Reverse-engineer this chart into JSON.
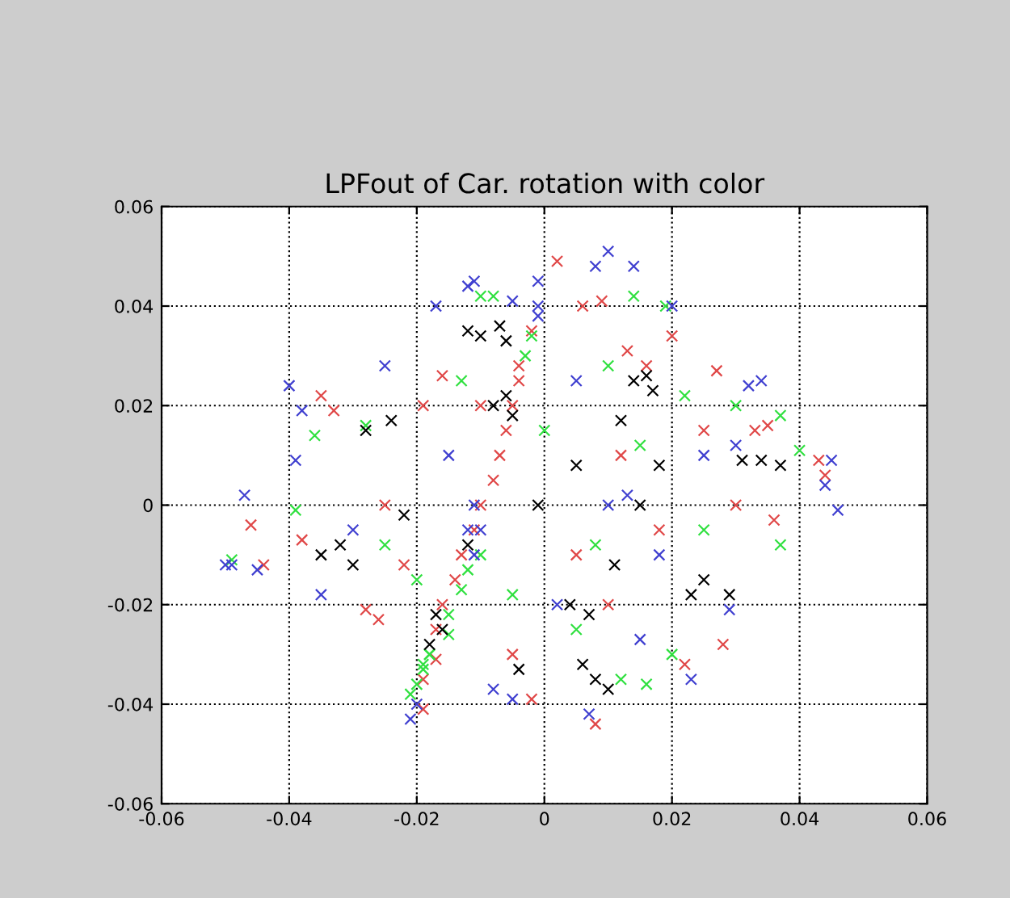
{
  "chart_data": {
    "type": "scatter",
    "title": "LPFout of Car. rotation with color",
    "marker": "cross",
    "grid": true,
    "legend": false,
    "xlim": [
      -0.06,
      0.06
    ],
    "ylim": [
      -0.06,
      0.06
    ],
    "xticks": [
      -0.06,
      -0.04,
      -0.02,
      0,
      0.02,
      0.04,
      0.06
    ],
    "yticks": [
      -0.06,
      -0.04,
      -0.02,
      0,
      0.02,
      0.04,
      0.06
    ],
    "series": [
      {
        "color": "#e04848",
        "x": [
          -0.019,
          -0.019,
          -0.017,
          -0.017,
          -0.016,
          -0.014,
          -0.013,
          -0.011,
          -0.01,
          -0.008,
          -0.007,
          -0.006,
          -0.005,
          -0.004,
          -0.004,
          -0.002,
          0.002,
          0.009,
          0.006,
          -0.035,
          -0.033,
          -0.038,
          -0.044,
          -0.046,
          -0.028,
          -0.026,
          0.043,
          0.044,
          0.035,
          0.028,
          0.022,
          0.008,
          -0.002,
          0.016,
          0.02,
          -0.016,
          -0.019,
          0.03,
          0.012,
          0.005,
          -0.025,
          0.025,
          0.01,
          -0.01,
          0.036,
          -0.005,
          0.018,
          0.013,
          -0.022,
          0.027,
          0.033
        ],
        "values": [
          -0.041,
          -0.035,
          -0.031,
          -0.025,
          -0.02,
          -0.015,
          -0.01,
          -0.005,
          0,
          0.005,
          0.01,
          0.015,
          0.02,
          0.025,
          0.028,
          0.035,
          0.049,
          0.041,
          0.04,
          0.022,
          0.019,
          -0.007,
          -0.012,
          -0.004,
          -0.021,
          -0.023,
          0.009,
          0.006,
          0.016,
          -0.028,
          -0.032,
          -0.044,
          -0.039,
          0.028,
          0.034,
          0.026,
          0.02,
          0,
          0.01,
          -0.01,
          0,
          0.015,
          -0.02,
          0.02,
          -0.003,
          -0.03,
          -0.005,
          0.031,
          -0.012,
          0.027,
          0.015
        ]
      },
      {
        "color": "#30e040",
        "x": [
          -0.021,
          -0.02,
          -0.019,
          -0.018,
          -0.015,
          -0.015,
          -0.013,
          -0.012,
          -0.01,
          -0.003,
          -0.002,
          -0.01,
          -0.008,
          0.014,
          0.019,
          -0.049,
          -0.039,
          -0.036,
          0.037,
          0.04,
          0.037,
          0.016,
          0.02,
          0.01,
          0.015,
          -0.028,
          -0.02,
          0.005,
          0.025,
          0,
          -0.013,
          0.03,
          0.008,
          -0.025,
          0.012,
          -0.005,
          0.022,
          -0.018,
          -0.019
        ],
        "values": [
          -0.038,
          -0.036,
          -0.033,
          -0.03,
          -0.026,
          -0.022,
          -0.017,
          -0.013,
          -0.01,
          0.03,
          0.034,
          0.042,
          0.042,
          0.042,
          0.04,
          -0.011,
          -0.001,
          0.014,
          0.018,
          0.011,
          -0.008,
          -0.036,
          -0.03,
          0.028,
          0.012,
          0.016,
          -0.015,
          -0.025,
          -0.005,
          0.015,
          0.025,
          0.02,
          -0.008,
          -0.008,
          -0.035,
          -0.018,
          0.022,
          -0.03,
          -0.032
        ]
      },
      {
        "color": "#4040d0",
        "x": [
          0.01,
          0.014,
          0.008,
          -0.012,
          -0.011,
          -0.001,
          -0.005,
          -0.05,
          -0.047,
          -0.049,
          -0.045,
          -0.04,
          -0.038,
          -0.039,
          -0.035,
          0.045,
          0.044,
          0.046,
          0.032,
          0.034,
          0.023,
          0.007,
          -0.005,
          -0.008,
          -0.021,
          -0.02,
          -0.011,
          -0.01,
          -0.012,
          -0.011,
          -0.001,
          -0.001,
          0.02,
          0.015,
          0.029,
          -0.025,
          -0.017,
          0.01,
          0.025,
          -0.03,
          0.005,
          0.018,
          -0.015,
          0.03,
          0.002,
          0.013
        ],
        "values": [
          0.051,
          0.048,
          0.048,
          0.044,
          0.045,
          0.045,
          0.041,
          -0.012,
          0.002,
          -0.012,
          -0.013,
          0.024,
          0.019,
          0.009,
          -0.018,
          0.009,
          0.004,
          -0.001,
          0.024,
          0.025,
          -0.035,
          -0.042,
          -0.039,
          -0.037,
          -0.043,
          -0.04,
          -0.01,
          -0.005,
          -0.005,
          0,
          0.04,
          0.038,
          0.04,
          -0.027,
          -0.021,
          0.028,
          0.04,
          0,
          0.01,
          -0.005,
          0.025,
          -0.01,
          0.01,
          0.012,
          -0.02,
          0.002
        ]
      },
      {
        "color": "#000000",
        "x": [
          -0.012,
          -0.01,
          -0.007,
          -0.006,
          -0.008,
          -0.006,
          -0.005,
          -0.017,
          -0.016,
          -0.018,
          -0.028,
          -0.024,
          -0.032,
          -0.035,
          -0.03,
          -0.022,
          0.014,
          0.017,
          0.016,
          0.031,
          0.034,
          0.037,
          0.025,
          0.023,
          0.006,
          0.008,
          0.01,
          0.004,
          0.007,
          0.011,
          0.005,
          0.018,
          0.015,
          -0.012,
          0.012,
          -0.004,
          0.029,
          -0.001
        ],
        "values": [
          0.035,
          0.034,
          0.036,
          0.033,
          0.02,
          0.022,
          0.018,
          -0.022,
          -0.025,
          -0.028,
          0.015,
          0.017,
          -0.008,
          -0.01,
          -0.012,
          -0.002,
          0.025,
          0.023,
          0.026,
          0.009,
          0.009,
          0.008,
          -0.015,
          -0.018,
          -0.032,
          -0.035,
          -0.037,
          -0.02,
          -0.022,
          -0.012,
          0.008,
          0.008,
          0,
          -0.008,
          0.017,
          -0.033,
          -0.018,
          0
        ]
      }
    ]
  }
}
